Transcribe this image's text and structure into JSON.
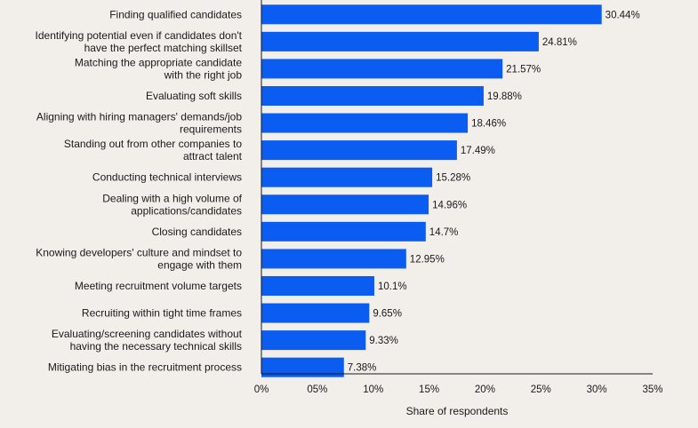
{
  "chart_data": {
    "type": "bar",
    "orientation": "horizontal",
    "title": "",
    "xlabel": "Share of respondents",
    "ylabel": "",
    "xlim": [
      0,
      35
    ],
    "grid": false,
    "bar_color": "#0b5cf0",
    "categories": [
      [
        "Finding qualified candidates"
      ],
      [
        "Identifying potential even if candidates don't",
        "have the  perfect matching skillset"
      ],
      [
        "Matching the appropriate candidate",
        "with the right job"
      ],
      [
        "Evaluating soft skills"
      ],
      [
        "Aligning with hiring managers' demands/job",
        "requirements"
      ],
      [
        "Standing out from other companies to",
        "attract talent"
      ],
      [
        "Conducting technical interviews"
      ],
      [
        "Dealing with a high volume of",
        "applications/candidates"
      ],
      [
        "Closing candidates"
      ],
      [
        "Knowing developers' culture and mindset to",
        "engage with them"
      ],
      [
        "Meeting recruitment volume targets"
      ],
      [
        "Recruiting within tight time frames"
      ],
      [
        "Evaluating/screening candidates without",
        "having the necessary technical skills"
      ],
      [
        "Mitigating bias in the recruitment process"
      ]
    ],
    "values": [
      30.44,
      24.81,
      21.57,
      19.88,
      18.46,
      17.49,
      15.28,
      14.96,
      14.7,
      12.95,
      10.1,
      9.65,
      9.33,
      7.38
    ],
    "value_labels": [
      "30.44%",
      "24.81%",
      "21.57%",
      "19.88%",
      "18.46%",
      "17.49%",
      "15.28%",
      "14.96%",
      "14.7%",
      "12.95%",
      "10.1%",
      "9.65%",
      "9.33%",
      "7.38%"
    ],
    "x_ticks": [
      0,
      5,
      10,
      15,
      20,
      25,
      30,
      35
    ],
    "x_tick_labels": [
      "0%",
      "05%",
      "10%",
      "15%",
      "20%",
      "25%",
      "30%",
      "35%"
    ]
  }
}
